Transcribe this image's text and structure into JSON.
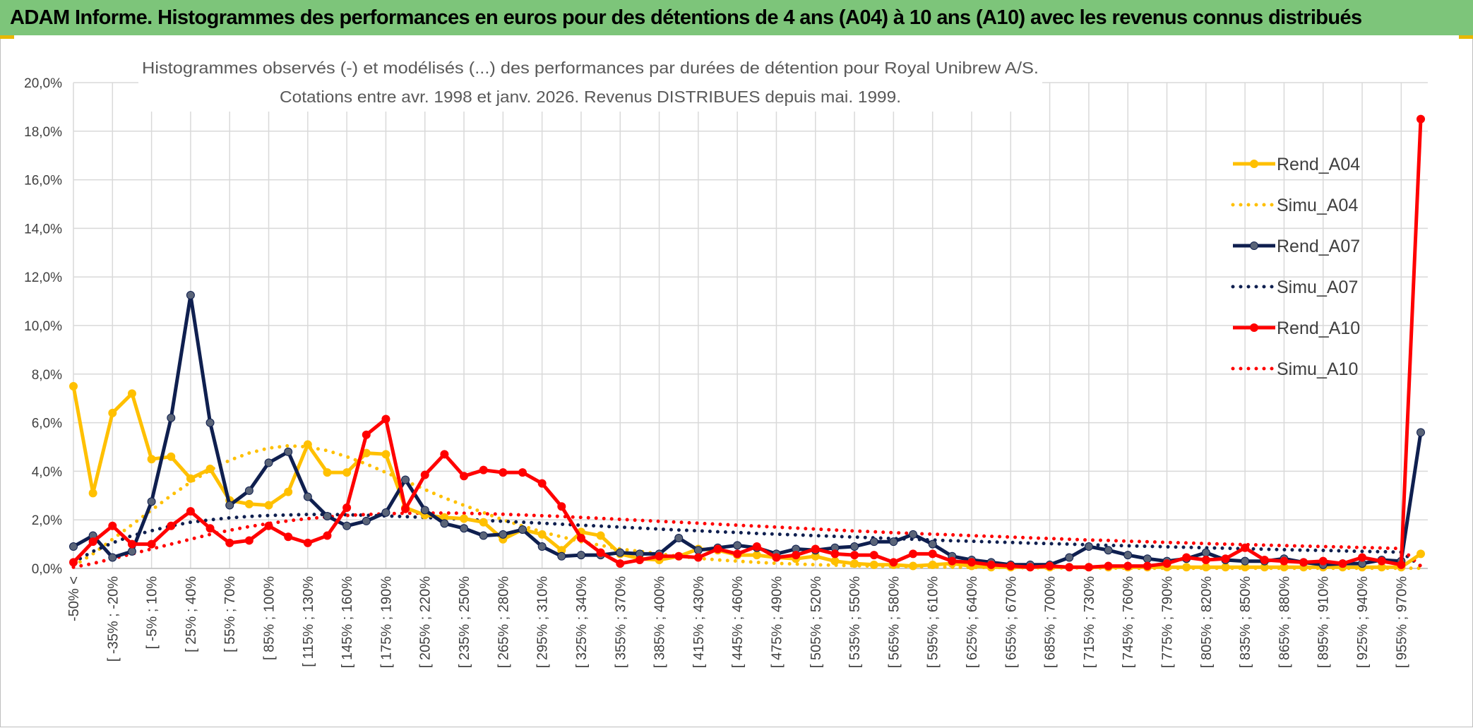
{
  "banner": {
    "title": "ADAM Informe. Histogrammes des performances en euros pour des détentions de 4 ans (A04) à 10 ans (A10) avec les revenus connus distribués"
  },
  "chart_data": {
    "type": "line",
    "title_line1": "Histogrammes observés (-) et modélisés (...) des performances par durées de détention pour Royal Unibrew A/S.",
    "title_line2": "Cotations entre avr. 1998 et janv. 2026. Revenus DISTRIBUES depuis mai. 1999.",
    "ylim": [
      0,
      20
    ],
    "y_ticks": [
      "0,0%",
      "2,0%",
      "4,0%",
      "6,0%",
      "8,0%",
      "10,0%",
      "12,0%",
      "14,0%",
      "16,0%",
      "18,0%",
      "20,0%"
    ],
    "grid": true,
    "legend_position": "right",
    "x_labels": [
      "-50% <",
      "[ -35% ; -20%",
      "[ -5% ; 10%",
      "[ 25% ; 40%",
      "[ 55% ; 70%",
      "[ 85% ; 100%",
      "[ 115% ; 130%",
      "[ 145% ; 160%",
      "[ 175% ; 190%",
      "[ 205% ; 220%",
      "[ 235% ; 250%",
      "[ 265% ; 280%",
      "[ 295% ; 310%",
      "[ 325% ; 340%",
      "[ 355% ; 370%",
      "[ 385% ; 400%",
      "[ 415% ; 430%",
      "[ 445% ; 460%",
      "[ 475% ; 490%",
      "[ 505% ; 520%",
      "[ 535% ; 550%",
      "[ 565% ; 580%",
      "[ 595% ; 610%",
      "[ 625% ; 640%",
      "[ 655% ; 670%",
      "[ 685% ; 700%",
      "[ 715% ; 730%",
      "[ 745% ; 760%",
      "[ 775% ; 790%",
      "[ 805% ; 820%",
      "[ 835% ; 850%",
      "[ 865% ; 880%",
      "[ 895% ; 910%",
      "[ 925% ; 940%",
      "[ 955% ; 970%"
    ],
    "n_categories": 70,
    "series": [
      {
        "name": "Rend_A04",
        "color": "#ffc000",
        "style": "solid",
        "markers": true,
        "values": [
          7.5,
          3.1,
          6.4,
          7.2,
          4.5,
          4.6,
          3.7,
          4.1,
          2.8,
          2.65,
          2.6,
          3.15,
          5.1,
          3.95,
          3.95,
          4.75,
          4.7,
          2.5,
          2.2,
          2.1,
          2.05,
          1.9,
          1.2,
          1.6,
          1.4,
          0.75,
          1.5,
          1.35,
          0.6,
          0.4,
          0.35,
          0.5,
          0.8,
          0.75,
          0.55,
          0.55,
          0.45,
          0.4,
          0.5,
          0.3,
          0.2,
          0.15,
          0.15,
          0.1,
          0.15,
          0.2,
          0.1,
          0.05,
          0.05,
          0.05,
          0.05,
          0.05,
          0.05,
          0.05,
          0.05,
          0.05,
          0.05,
          0.05,
          0.05,
          0.05,
          0.05,
          0.05,
          0.05,
          0.05,
          0.05,
          0.05,
          0.05,
          0.05,
          0.05,
          0.6
        ]
      },
      {
        "name": "Simu_A04",
        "color": "#ffc000",
        "style": "dotted",
        "markers": false,
        "values": [
          0.1,
          0.6,
          1.2,
          1.8,
          2.4,
          3.0,
          3.55,
          4.05,
          4.45,
          4.75,
          4.95,
          5.05,
          5.0,
          4.85,
          4.6,
          4.3,
          3.95,
          3.6,
          3.25,
          2.9,
          2.6,
          2.3,
          2.0,
          1.75,
          1.5,
          1.3,
          1.1,
          0.95,
          0.8,
          0.7,
          0.6,
          0.5,
          0.42,
          0.35,
          0.3,
          0.25,
          0.21,
          0.18,
          0.15,
          0.13,
          0.11,
          0.09,
          0.08,
          0.07,
          0.06,
          0.05,
          0.04,
          0.04,
          0.03,
          0.03,
          0.02,
          0.02,
          0.02,
          0.02,
          0.01,
          0.01,
          0.01,
          0.01,
          0.01,
          0.01,
          0.01,
          0.01,
          0.01,
          0.01,
          0.01,
          0.01,
          0.01,
          0.01,
          0.01,
          0.01
        ]
      },
      {
        "name": "Rend_A07",
        "color": "#0f1f4f",
        "style": "solid",
        "markers": true,
        "values": [
          0.9,
          1.35,
          0.45,
          0.7,
          2.75,
          6.2,
          11.25,
          6.0,
          2.6,
          3.2,
          4.35,
          4.8,
          2.95,
          2.15,
          1.75,
          1.95,
          2.3,
          3.65,
          2.4,
          1.85,
          1.65,
          1.35,
          1.4,
          1.6,
          0.9,
          0.5,
          0.55,
          0.55,
          0.65,
          0.6,
          0.6,
          1.25,
          0.75,
          0.85,
          0.95,
          0.85,
          0.6,
          0.8,
          0.75,
          0.85,
          0.9,
          1.1,
          1.1,
          1.4,
          1.0,
          0.5,
          0.35,
          0.25,
          0.15,
          0.15,
          0.15,
          0.45,
          0.9,
          0.75,
          0.55,
          0.4,
          0.3,
          0.4,
          0.65,
          0.35,
          0.3,
          0.3,
          0.4,
          0.25,
          0.15,
          0.2,
          0.2,
          0.35,
          0.3,
          5.6
        ]
      },
      {
        "name": "Simu_A07",
        "color": "#0f1f4f",
        "style": "dotted",
        "markers": false,
        "values": [
          0.25,
          0.7,
          1.05,
          1.35,
          1.55,
          1.75,
          1.9,
          2.0,
          2.08,
          2.14,
          2.18,
          2.2,
          2.22,
          2.22,
          2.21,
          2.19,
          2.16,
          2.13,
          2.1,
          2.06,
          2.02,
          1.98,
          1.94,
          1.9,
          1.86,
          1.82,
          1.78,
          1.74,
          1.7,
          1.66,
          1.62,
          1.58,
          1.55,
          1.51,
          1.48,
          1.44,
          1.41,
          1.38,
          1.35,
          1.32,
          1.29,
          1.26,
          1.23,
          1.2,
          1.17,
          1.14,
          1.12,
          1.09,
          1.07,
          1.04,
          1.02,
          1.0,
          0.97,
          0.95,
          0.93,
          0.91,
          0.89,
          0.87,
          0.85,
          0.83,
          0.81,
          0.79,
          0.77,
          0.75,
          0.74,
          0.72,
          0.7,
          0.69,
          0.67,
          0.1
        ]
      },
      {
        "name": "Rend_A10",
        "color": "#ff0000",
        "style": "solid",
        "markers": true,
        "values": [
          0.25,
          1.1,
          1.75,
          1.0,
          1.0,
          1.75,
          2.35,
          1.65,
          1.05,
          1.15,
          1.75,
          1.3,
          1.05,
          1.35,
          2.5,
          5.5,
          6.15,
          2.45,
          3.85,
          4.7,
          3.8,
          4.05,
          3.95,
          3.95,
          3.5,
          2.55,
          1.25,
          0.65,
          0.2,
          0.35,
          0.5,
          0.5,
          0.45,
          0.8,
          0.6,
          0.9,
          0.45,
          0.55,
          0.8,
          0.6,
          0.55,
          0.55,
          0.25,
          0.6,
          0.6,
          0.3,
          0.25,
          0.15,
          0.1,
          0.05,
          0.1,
          0.05,
          0.05,
          0.1,
          0.1,
          0.1,
          0.2,
          0.45,
          0.35,
          0.4,
          0.85,
          0.35,
          0.3,
          0.25,
          0.3,
          0.2,
          0.45,
          0.3,
          0.15,
          18.5
        ]
      },
      {
        "name": "Simu_A10",
        "color": "#ff0000",
        "style": "dotted",
        "markers": false,
        "values": [
          0.05,
          0.2,
          0.4,
          0.6,
          0.8,
          1.0,
          1.2,
          1.4,
          1.57,
          1.72,
          1.85,
          1.96,
          2.05,
          2.12,
          2.18,
          2.22,
          2.25,
          2.27,
          2.28,
          2.28,
          2.27,
          2.25,
          2.23,
          2.2,
          2.17,
          2.14,
          2.1,
          2.06,
          2.02,
          1.98,
          1.94,
          1.9,
          1.86,
          1.82,
          1.78,
          1.74,
          1.7,
          1.66,
          1.62,
          1.58,
          1.54,
          1.51,
          1.47,
          1.44,
          1.41,
          1.38,
          1.35,
          1.32,
          1.29,
          1.26,
          1.23,
          1.2,
          1.17,
          1.15,
          1.12,
          1.1,
          1.07,
          1.05,
          1.02,
          1.0,
          0.98,
          0.96,
          0.94,
          0.92,
          0.9,
          0.88,
          0.86,
          0.84,
          0.82,
          0.1
        ]
      }
    ]
  }
}
